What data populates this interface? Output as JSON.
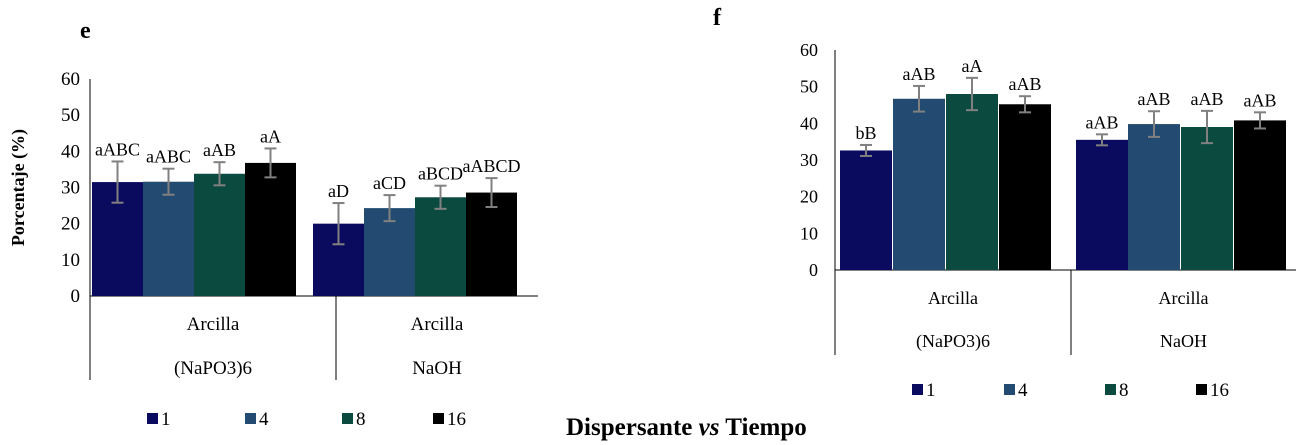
{
  "caption": {
    "part1": "Dispersante",
    "part2": "vs",
    "part3": "Tiempo"
  },
  "colors": {
    "1": "#0a0a5e",
    "4": "#234b72",
    "8": "#0b4a3f",
    "16": "#000000",
    "error": "#808080"
  },
  "chart_data": [
    {
      "panel": "e",
      "type": "bar",
      "ylabel": "Porcentaje (%)",
      "ylim": [
        0,
        60
      ],
      "yticks": [
        0,
        10,
        20,
        30,
        40,
        50,
        60
      ],
      "categories": [
        {
          "line1": "Arcilla",
          "line2": "(NaPO3)6"
        },
        {
          "line1": "Arcilla",
          "line2": "NaOH"
        }
      ],
      "series": [
        {
          "name": "1",
          "values": [
            31.5,
            20.0
          ],
          "errors": [
            5.7,
            5.7
          ],
          "labels": [
            "aABC",
            "aD"
          ]
        },
        {
          "name": "4",
          "values": [
            31.6,
            24.3
          ],
          "errors": [
            3.6,
            3.6
          ],
          "labels": [
            "aABC",
            "aCD"
          ]
        },
        {
          "name": "8",
          "values": [
            33.8,
            27.3
          ],
          "errors": [
            3.2,
            3.2
          ],
          "labels": [
            "aAB",
            "aBCD"
          ]
        },
        {
          "name": "16",
          "values": [
            36.8,
            28.6
          ],
          "errors": [
            4.0,
            4.0
          ],
          "labels": [
            "aA",
            "aABCD"
          ]
        }
      ],
      "legend": [
        "1",
        "4",
        "8",
        "16"
      ],
      "legend_position": "bottom"
    },
    {
      "panel": "f",
      "type": "bar",
      "ylabel": "",
      "ylim": [
        0,
        60
      ],
      "yticks": [
        0,
        10,
        20,
        30,
        40,
        50,
        60
      ],
      "categories": [
        {
          "line1": "Arcilla",
          "line2": "(NaPO3)6"
        },
        {
          "line1": "Arcilla",
          "line2": "NaOH"
        }
      ],
      "series": [
        {
          "name": "1",
          "values": [
            32.6,
            35.5
          ],
          "errors": [
            1.5,
            1.5
          ],
          "labels": [
            "bB",
            "aAB"
          ]
        },
        {
          "name": "4",
          "values": [
            46.7,
            39.8
          ],
          "errors": [
            3.5,
            3.5
          ],
          "labels": [
            "aAB",
            "aAB"
          ]
        },
        {
          "name": "8",
          "values": [
            48.0,
            39.0
          ],
          "errors": [
            4.4,
            4.4
          ],
          "labels": [
            "aA",
            "aAB"
          ]
        },
        {
          "name": "16",
          "values": [
            45.2,
            40.8
          ],
          "errors": [
            2.2,
            2.2
          ],
          "labels": [
            "aAB",
            "aAB"
          ]
        }
      ],
      "legend": [
        "1",
        "4",
        "8",
        "16"
      ],
      "legend_position": "bottom"
    }
  ]
}
